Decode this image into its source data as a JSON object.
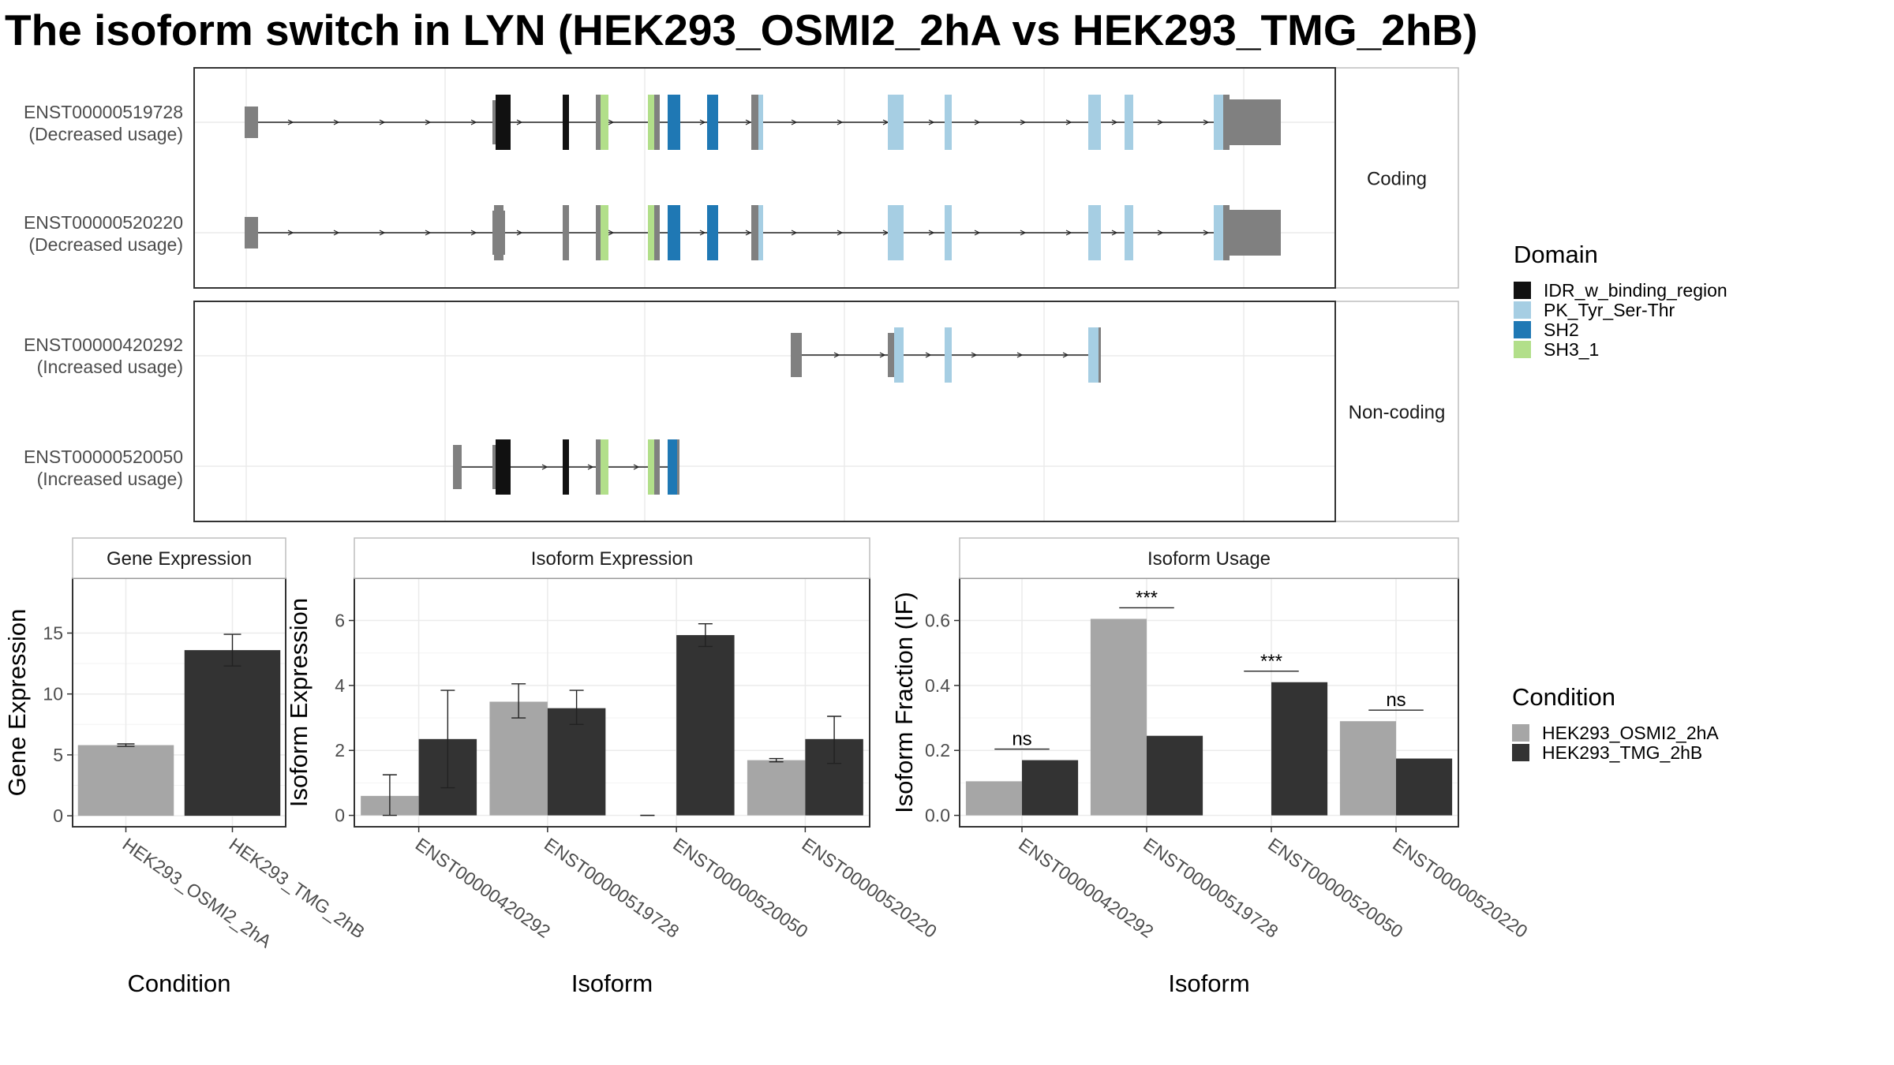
{
  "title": "The isoform switch in LYN (HEK293_OSMI2_2hA vs HEK293_TMG_2hB)",
  "colors": {
    "IDR_w_binding_region": "#111111",
    "PK_Tyr_Ser-Thr": "#a6cee3",
    "SH2": "#1f78b4",
    "SH3_1": "#b2df8a",
    "no_domain": "#808080",
    "condition_a": "#a6a6a6",
    "condition_b": "#333333"
  },
  "isoform_structure": {
    "groups": [
      {
        "strip": "Coding",
        "transcripts": [
          {
            "id": "ENST00000519728",
            "usage": "(Decreased usage)"
          },
          {
            "id": "ENST00000520220",
            "usage": "(Decreased usage)"
          }
        ]
      },
      {
        "strip": "Non-coding",
        "transcripts": [
          {
            "id": "ENST00000420292",
            "usage": "(Increased usage)"
          },
          {
            "id": "ENST00000520050",
            "usage": "(Increased usage)"
          }
        ]
      }
    ]
  },
  "legends": {
    "domain": {
      "title": "Domain",
      "items": [
        {
          "label": "IDR_w_binding_region",
          "color": "#111111"
        },
        {
          "label": "PK_Tyr_Ser-Thr",
          "color": "#a6cee3"
        },
        {
          "label": "SH2",
          "color": "#1f78b4"
        },
        {
          "label": "SH3_1",
          "color": "#b2df8a"
        }
      ]
    },
    "condition": {
      "title": "Condition",
      "items": [
        {
          "label": "HEK293_OSMI2_2hA",
          "color": "#a6a6a6"
        },
        {
          "label": "HEK293_TMG_2hB",
          "color": "#333333"
        }
      ]
    }
  },
  "chart_data": [
    {
      "type": "bar",
      "title": "Gene Expression",
      "xlabel": "Condition",
      "ylabel": "Gene Expression",
      "categories": [
        "HEK293_OSMI2_2hA",
        "HEK293_TMG_2hB"
      ],
      "values": [
        5.8,
        13.6
      ],
      "errors": [
        [
          5.7,
          5.9
        ],
        [
          12.3,
          14.9
        ]
      ],
      "ylim": [
        -0.9,
        19.5
      ],
      "yticks": [
        0,
        5,
        10,
        15
      ],
      "grid": true
    },
    {
      "type": "bar",
      "title": "Isoform Expression",
      "xlabel": "Isoform",
      "ylabel": "Isoform Expression",
      "categories": [
        "ENST00000420292",
        "ENST00000519728",
        "ENST00000520050",
        "ENST00000520220"
      ],
      "series": [
        {
          "name": "HEK293_OSMI2_2hA",
          "values": [
            0.6,
            3.5,
            0.0,
            1.7
          ],
          "errors": [
            [
              0.0,
              1.25
            ],
            [
              3.0,
              4.05
            ],
            [
              0.0,
              0.0
            ],
            [
              1.65,
              1.75
            ]
          ]
        },
        {
          "name": "HEK293_TMG_2hB",
          "values": [
            2.35,
            3.3,
            5.55,
            2.35
          ],
          "errors": [
            [
              0.85,
              3.85
            ],
            [
              2.8,
              3.85
            ],
            [
              5.2,
              5.9
            ],
            [
              1.6,
              3.05
            ]
          ]
        }
      ],
      "ylim": [
        -0.35,
        7.3
      ],
      "yticks": [
        0,
        2,
        4,
        6
      ],
      "grid": true
    },
    {
      "type": "bar",
      "title": "Isoform Usage",
      "xlabel": "Isoform",
      "ylabel": "Isoform Fraction (IF)",
      "categories": [
        "ENST00000420292",
        "ENST00000519728",
        "ENST00000520050",
        "ENST00000520220"
      ],
      "series": [
        {
          "name": "HEK293_OSMI2_2hA",
          "values": [
            0.105,
            0.605,
            0.0,
            0.29
          ]
        },
        {
          "name": "HEK293_TMG_2hB",
          "values": [
            0.17,
            0.245,
            0.41,
            0.175
          ]
        }
      ],
      "significance": [
        "ns",
        "***",
        "***",
        "ns"
      ],
      "ylim": [
        -0.035,
        0.73
      ],
      "yticks": [
        0.0,
        0.2,
        0.4,
        0.6
      ],
      "ytick_labels": [
        "0.0",
        "0.2",
        "0.4",
        "0.6"
      ],
      "grid": true
    }
  ]
}
